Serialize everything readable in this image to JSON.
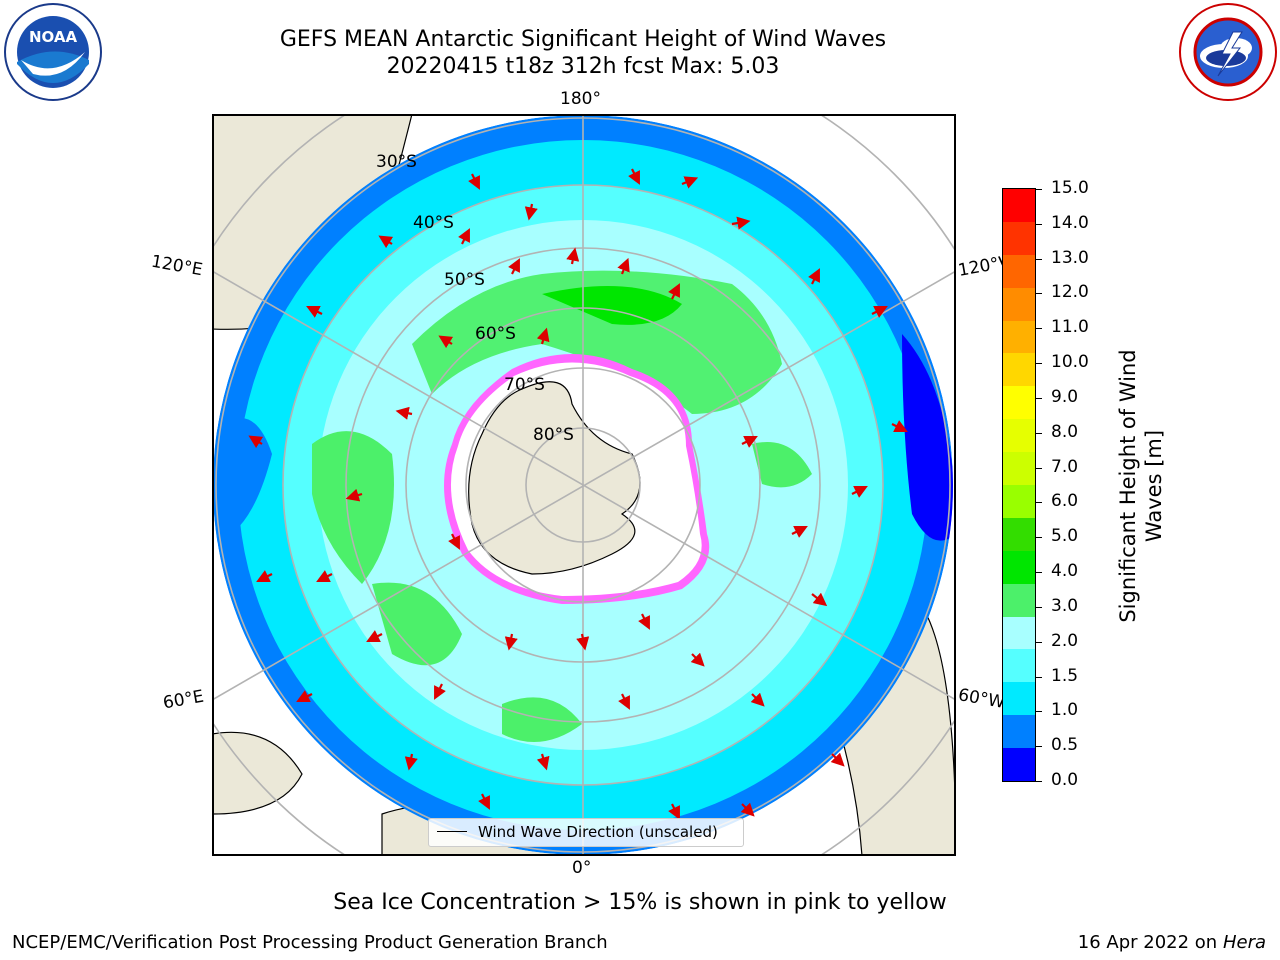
{
  "title": {
    "line1": "GEFS MEAN Antarctic Significant Height of Wind Waves",
    "line2": "20220415 t18z 312h fcst   Max: 5.03"
  },
  "logos": {
    "left": {
      "icon": "noaa-logo-icon",
      "text": "NOAA",
      "ring_text": "NATIONAL OCEANIC AND ATMOSPHERIC ADMINISTRATION · U.S. DEPARTMENT OF COMMERCE"
    },
    "right": {
      "icon": "national-weather-service-logo-icon",
      "ring_text": "NATIONAL WEATHER SERVICE"
    }
  },
  "map": {
    "projection": "south-polar-stereographic",
    "longitude_labels": [
      "180°",
      "120°E",
      "120°W",
      "60°E",
      "60°W",
      "0°"
    ],
    "latitude_labels": [
      "30°S",
      "40°S",
      "50°S",
      "60°S",
      "70°S",
      "80°S"
    ],
    "legend_entry": "Wind Wave Direction (unscaled)"
  },
  "colorbar": {
    "label_line1": "Significant Height of Wind",
    "label_line2": "Waves [m]",
    "ticks": [
      "15.0",
      "14.0",
      "13.0",
      "12.0",
      "11.0",
      "10.0",
      "9.0",
      "8.0",
      "7.0",
      "6.0",
      "5.0",
      "4.0",
      "3.0",
      "2.0",
      "1.5",
      "1.0",
      "0.5",
      "0.0"
    ],
    "colors_top_to_bottom": [
      "#ff0000",
      "#ff3300",
      "#ff6600",
      "#ff8c00",
      "#ffb000",
      "#ffd700",
      "#ffff00",
      "#e6ff00",
      "#ccff00",
      "#99ff00",
      "#33dd00",
      "#00e600",
      "#4cf06a",
      "#a8ffff",
      "#55ffff",
      "#00eaff",
      "#0080ff",
      "#0000ff"
    ]
  },
  "caption": "Sea Ice Concentration > 15% is shown in pink to yellow",
  "footer": {
    "left": "NCEP/EMC/Verification Post Processing Product Generation Branch",
    "right_date": "16 Apr 2022 on",
    "right_host": "Hera"
  }
}
